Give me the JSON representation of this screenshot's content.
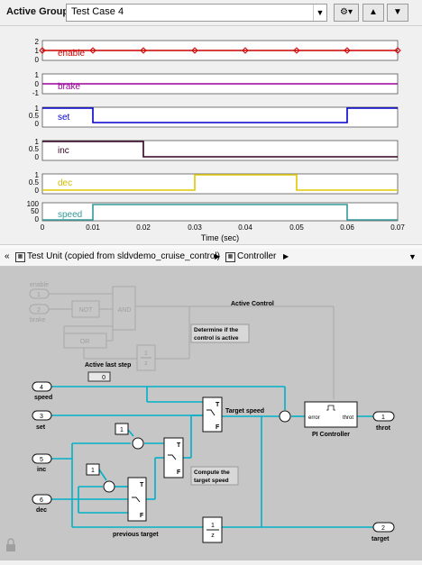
{
  "toolbar": {
    "active_group_label": "Active Group:",
    "active_group_value": "Test Case 4",
    "settings_icon": "gear-icon",
    "up_icon": "triangle-up-icon",
    "down_icon": "triangle-down-icon"
  },
  "signals": {
    "x_label": "Time (sec)",
    "x_ticks": [
      "0",
      "0.01",
      "0.02",
      "0.03",
      "0.04",
      "0.05",
      "0.06",
      "0.07"
    ],
    "tracks": [
      {
        "name": "enable",
        "color": "#cc0000",
        "y_ticks": [
          "2",
          "1",
          "0"
        ]
      },
      {
        "name": "brake",
        "color": "#9c009c",
        "y_ticks": [
          "1",
          "0",
          "-1"
        ]
      },
      {
        "name": "set",
        "color": "#0000cc",
        "y_ticks": [
          "1",
          "0.5",
          "0"
        ]
      },
      {
        "name": "inc",
        "color": "#330022",
        "y_ticks": [
          "1",
          "0.5",
          "0"
        ]
      },
      {
        "name": "dec",
        "color": "#e0c800",
        "y_ticks": [
          "1",
          "0.5",
          "0"
        ]
      },
      {
        "name": "speed",
        "color": "#339999",
        "y_ticks": [
          "100",
          "50",
          "0"
        ]
      }
    ]
  },
  "breadcrumb": {
    "back_icon": "double-chevron-left-icon",
    "root_label": "Test Unit (copied from sldvdemo_cruise_control)",
    "child_label": "Controller",
    "menu_icon": "dropdown-arrow-icon"
  },
  "model": {
    "inports": [
      {
        "num": "1",
        "name": "enable"
      },
      {
        "num": "2",
        "name": "brake"
      },
      {
        "num": "4",
        "name": "speed"
      },
      {
        "num": "3",
        "name": "set"
      },
      {
        "num": "5",
        "name": "inc"
      },
      {
        "num": "6",
        "name": "dec"
      }
    ],
    "outports": [
      {
        "num": "1",
        "name": "throt"
      },
      {
        "num": "2",
        "name": "target"
      }
    ],
    "blocks": {
      "not": "NOT",
      "and": "AND",
      "or": "OR",
      "unit_delay_num": "1",
      "unit_delay_den": "z",
      "display_value": "0",
      "const1": "1",
      "const2": "1",
      "switch_t": "T",
      "switch_f": "F",
      "pi_label": "PI Controller",
      "pi_in": "error",
      "pi_out": "throt"
    },
    "annotations": {
      "active_control": "Active Control",
      "determine": "Determine if the\ncontrol is active",
      "active_last_step": "Active last step",
      "target_speed": "Target speed",
      "compute_target": "Compute the\ntarget speed",
      "previous_target": "previous target"
    }
  }
}
